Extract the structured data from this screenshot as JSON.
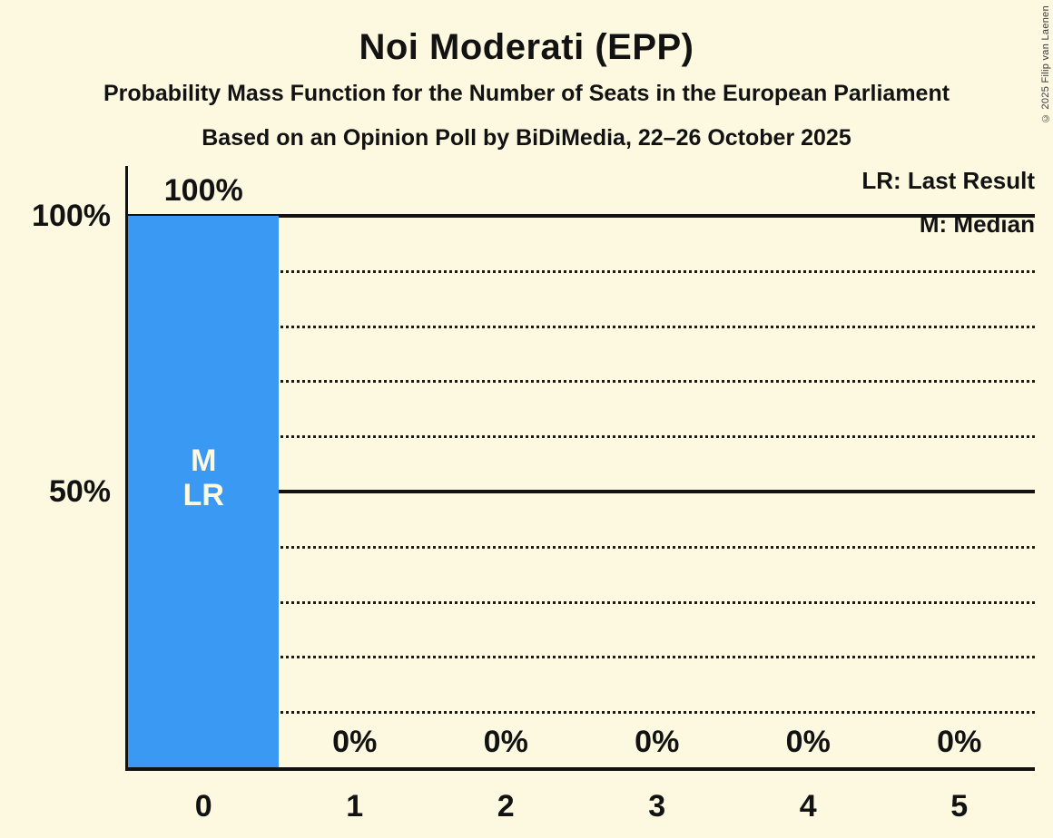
{
  "title": "Noi Moderati (EPP)",
  "subtitle": "Probability Mass Function for the Number of Seats in the European Parliament",
  "source_line": "Based on an Opinion Poll by BiDiMedia, 22–26 October 2025",
  "copyright": "© 2025 Filip van Laenen",
  "legend": {
    "lr": "LR: Last Result",
    "m": "M: Median"
  },
  "colors": {
    "background": "#FDF9E0",
    "bar": "#3A99F2",
    "text": "#121212"
  },
  "chart_data": {
    "type": "bar",
    "title": "Noi Moderati (EPP)",
    "categories": [
      "0",
      "1",
      "2",
      "3",
      "4",
      "5"
    ],
    "values": [
      100,
      0,
      0,
      0,
      0,
      0
    ],
    "value_labels": [
      "100%",
      "0%",
      "0%",
      "0%",
      "0%",
      "0%"
    ],
    "ylim": [
      0,
      100
    ],
    "ytick_positions": [
      100,
      50
    ],
    "ytick_labels": [
      "100%",
      "50%"
    ],
    "solid_gridlines_pct": [
      100,
      50
    ],
    "dotted_gridlines_pct": [
      90,
      80,
      70,
      60,
      40,
      30,
      20,
      10
    ],
    "grid": "horizontal",
    "legend_position": "top-right",
    "annotations": {
      "median_bar_index": 0,
      "last_result_bar_index": 0,
      "marker_lines": [
        "M",
        "LR"
      ]
    }
  }
}
